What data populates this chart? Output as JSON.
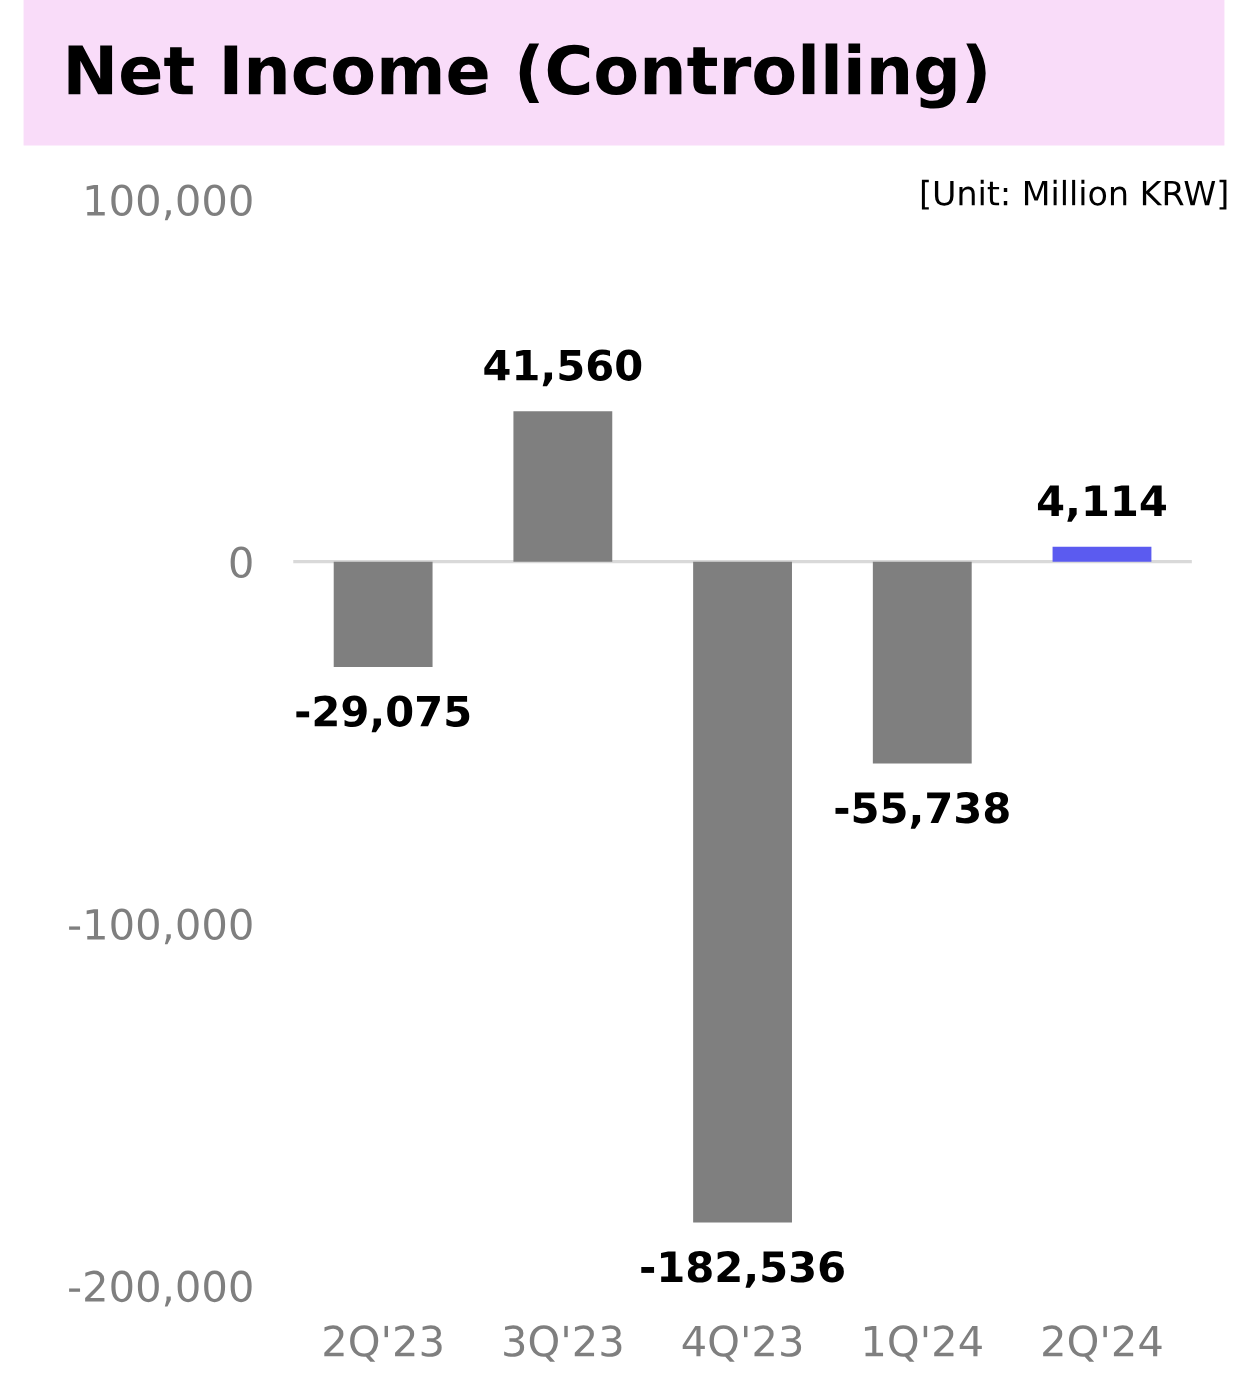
{
  "chart_data": {
    "type": "bar",
    "title": "Net Income (Controlling)",
    "annotations": [
      "[Unit: Million KRW]"
    ],
    "categories": [
      "2Q'23",
      "3Q'23",
      "4Q'23",
      "1Q'24",
      "2Q'24"
    ],
    "values": [
      -29075,
      41560,
      -182536,
      -55738,
      4114
    ],
    "colors": [
      "#7f7f7f",
      "#7f7f7f",
      "#7f7f7f",
      "#7f7f7f",
      "#5b5bf0"
    ],
    "value_labels": [
      "-29,075",
      "41,560",
      "-182,536",
      "-55,738",
      "4,114"
    ],
    "ylim": [
      -200000,
      100000
    ],
    "yticks": [
      {
        "value": -200000,
        "label": "-200,000"
      },
      {
        "value": -100000,
        "label": "-100,000"
      },
      0,
      {
        "value": 100000,
        "label": "100,000"
      }
    ],
    "ref_lines": [
      {
        "axis": "y",
        "value": 0,
        "color": "#d9d9d9"
      }
    ],
    "grid": false,
    "legend": false
  }
}
